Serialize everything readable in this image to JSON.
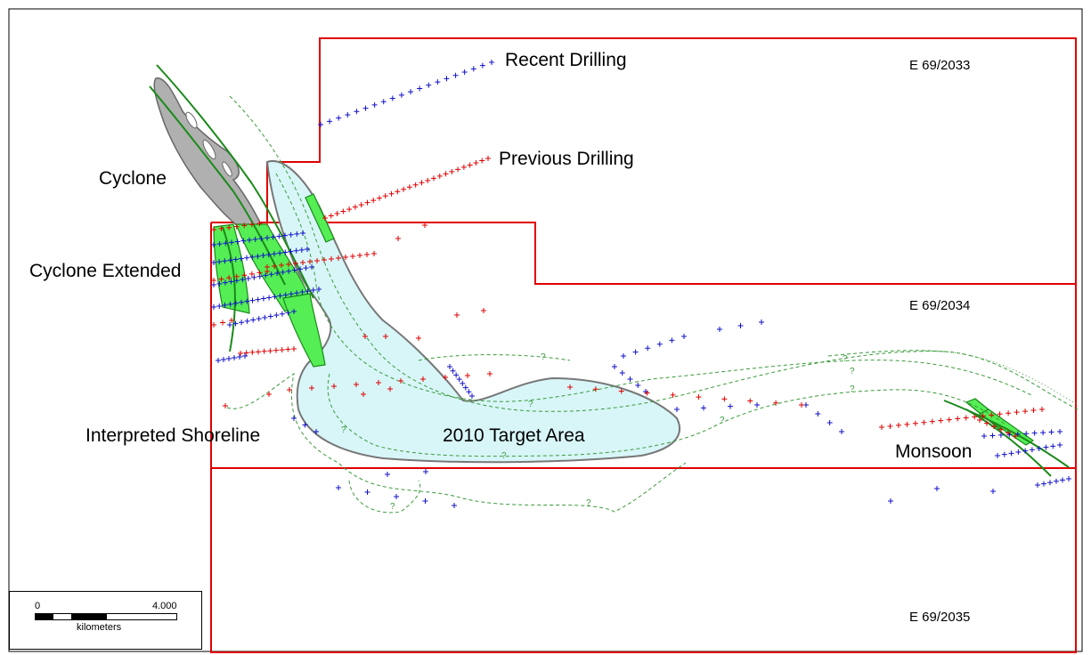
{
  "labels": {
    "recent_drilling": "Recent Drilling",
    "previous_drilling": "Previous Drilling",
    "cyclone": "Cyclone",
    "cyclone_extended": "Cyclone Extended",
    "interpreted_shoreline": "Interpreted Shoreline",
    "target_area": "2010 Target Area",
    "monsoon": "Monsoon"
  },
  "tenements": {
    "north": "E 69/2033",
    "middle": "E 69/2034",
    "south": "E 69/2035"
  },
  "scale_bar": {
    "start": "0",
    "end": "4.000",
    "unit": "kilometers"
  },
  "shoreline_query_mark": "?",
  "colors": {
    "tenement_boundary": "#e00000",
    "recent_drill_holes": "#1010cc",
    "previous_drill_holes": "#e00000",
    "mineralised_zone": "#55ee55",
    "fault_lines": "#1a8a1a",
    "target_area_fill": "#d8f6f8",
    "cyclone_outline_fill": "#b0b0b0",
    "shoreline": "#3a9a3a"
  }
}
